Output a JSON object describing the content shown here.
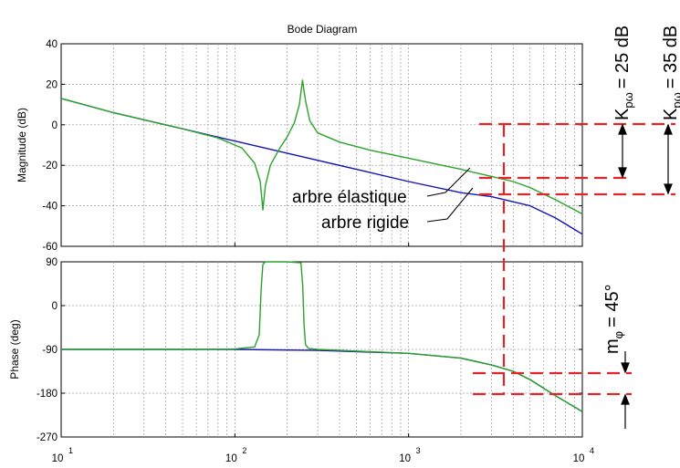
{
  "chart_data": {
    "type": "line",
    "title": "Bode Diagram",
    "x_scale": "log",
    "xlim": [
      10,
      10000
    ],
    "x_ticks": [
      {
        "value": 10,
        "base": "10",
        "exp": "1"
      },
      {
        "value": 100,
        "base": "10",
        "exp": "2"
      },
      {
        "value": 1000,
        "base": "10",
        "exp": "3"
      },
      {
        "value": 10000,
        "base": "10",
        "exp": "4"
      }
    ],
    "grid": true,
    "magnitude": {
      "ylabel": "Magnitude (dB)",
      "ylim": [
        -60,
        40
      ],
      "y_ticks": [
        40,
        20,
        0,
        -20,
        -40,
        -60
      ],
      "y_tick_labels": [
        "40",
        "20",
        "0",
        "-20",
        "-40",
        "-60"
      ],
      "series": [
        {
          "color": "#1414b4",
          "x": [
            10,
            20,
            50,
            100,
            200,
            500,
            1000,
            2000,
            3000,
            5000,
            7000,
            10000
          ],
          "values": [
            13,
            6,
            -2,
            -8,
            -14,
            -22,
            -28,
            -33.5,
            -35.5,
            -40,
            -46,
            -54
          ]
        },
        {
          "color": "#2aa32a",
          "x": [
            10,
            20,
            50,
            80,
            110,
            130,
            140,
            145,
            150,
            160,
            180,
            200,
            220,
            235,
            245,
            255,
            270,
            300,
            400,
            600,
            1000,
            2000,
            3000,
            4000,
            5000,
            7000,
            10000
          ],
          "values": [
            13,
            6,
            -2,
            -6.5,
            -11.5,
            -19,
            -28,
            -42,
            -30,
            -20,
            -12,
            -6,
            1,
            10,
            22,
            12,
            2,
            -4,
            -8.5,
            -12.5,
            -16.5,
            -22,
            -25.5,
            -28,
            -31,
            -37,
            -44
          ]
        }
      ],
      "annotations": [
        "arbre élastique",
        "arbre rigide"
      ]
    },
    "phase": {
      "ylabel": "Phase (deg)",
      "ylim": [
        -270,
        90
      ],
      "y_ticks": [
        90,
        0,
        -90,
        -180,
        -270
      ],
      "y_tick_labels": [
        "90",
        "0",
        "-90",
        "-180",
        "-270"
      ],
      "series": [
        {
          "color": "#1414b4",
          "x": [
            10,
            50,
            100,
            300,
            1000,
            2000,
            3000,
            4000,
            5000,
            7000,
            10000
          ],
          "values": [
            -90,
            -90,
            -90,
            -92,
            -98,
            -108,
            -122,
            -135,
            -152,
            -185,
            -218
          ]
        },
        {
          "color": "#2aa32a",
          "x": [
            10,
            50,
            100,
            130,
            138,
            142,
            145,
            150,
            200,
            240,
            246,
            250,
            255,
            265,
            300,
            1000,
            2000,
            3000,
            4000,
            5000,
            7000,
            10000
          ],
          "values": [
            -90,
            -90,
            -89,
            -85,
            -60,
            40,
            85,
            90,
            90,
            88,
            40,
            -40,
            -80,
            -88,
            -90,
            -98,
            -108,
            -122,
            -135,
            -152,
            -185,
            -218
          ]
        }
      ]
    },
    "annotations": {
      "k_green_label": "Kpω = 25 dB",
      "k_green_sub": "pω",
      "k_green_value": "= 25 dB",
      "k_blue_label": "Kpω = 35 dB",
      "k_blue_value": "= 35 dB",
      "m_phi_label": "mφ = 45°",
      "m_phi_sub": "φ",
      "m_phi_value": "= 45°",
      "marker_color": "#e0262a"
    }
  }
}
